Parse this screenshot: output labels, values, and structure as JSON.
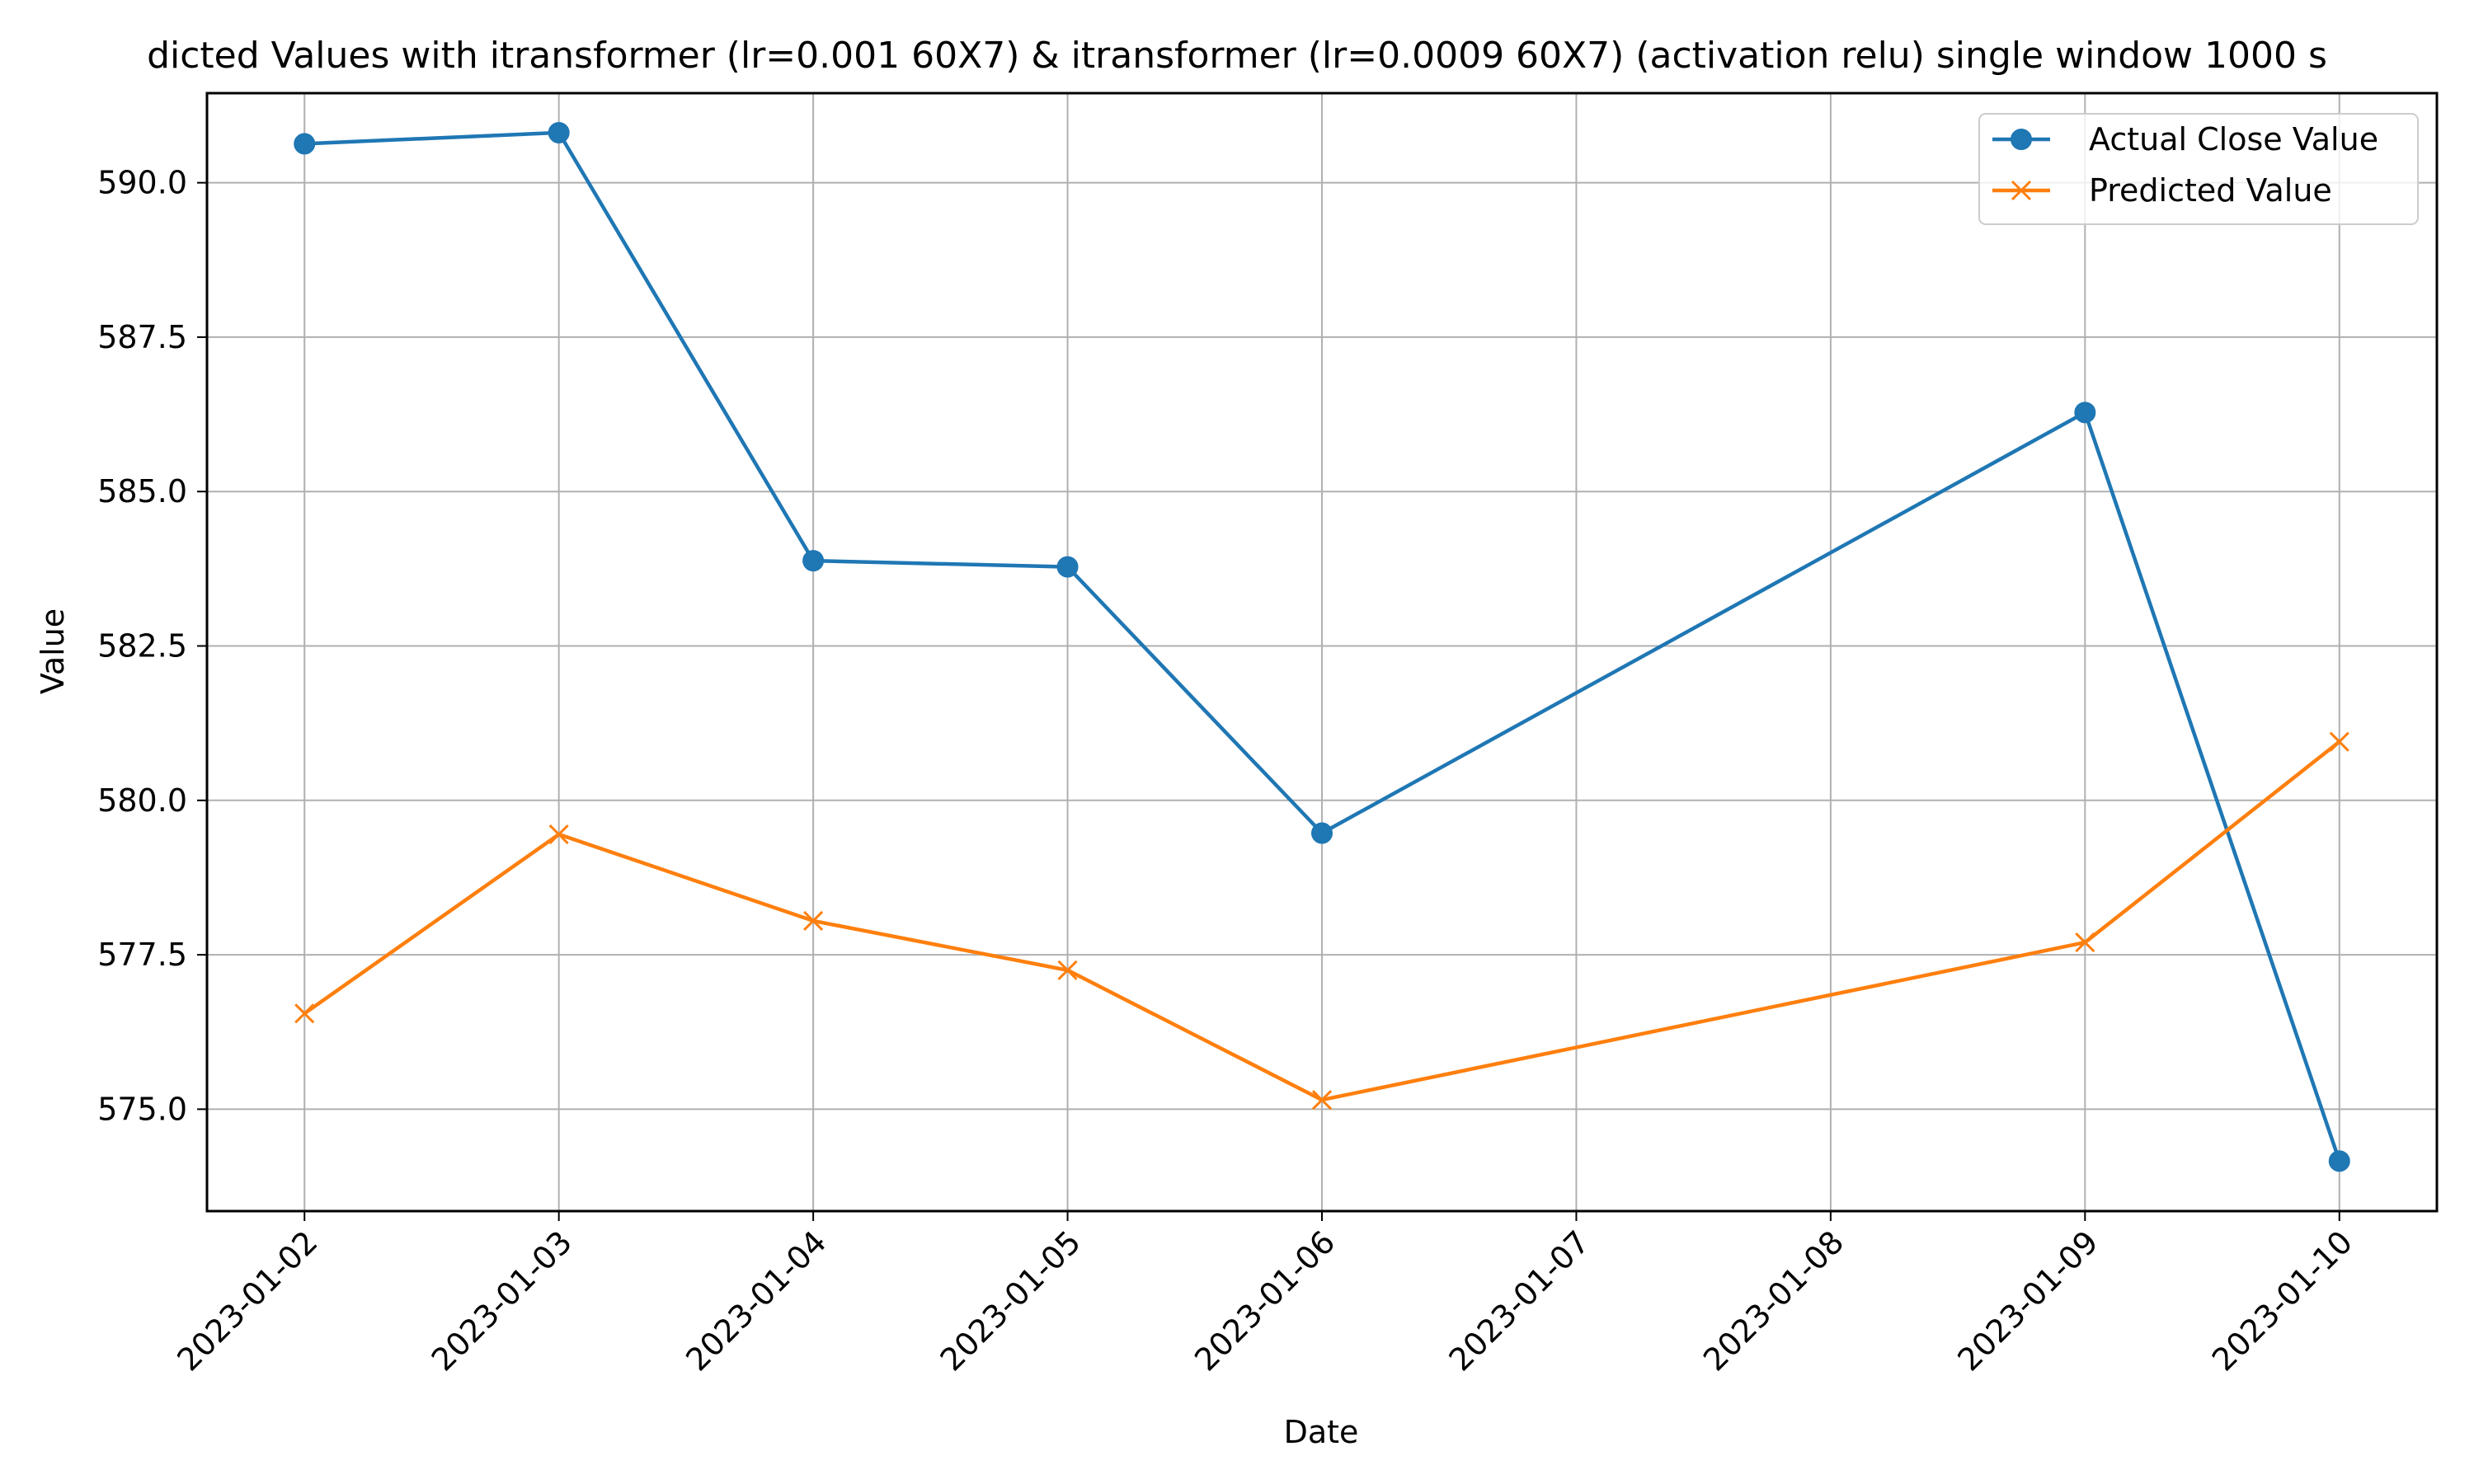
{
  "chart_data": {
    "type": "line",
    "title": "dicted Values with itransformer (lr=0.001 60X7) &  itransformer (lr=0.0009 60X7) (activation relu) single window 1000 s",
    "xlabel": "Date",
    "ylabel": "Value",
    "x": [
      "2023-01-02",
      "2023-01-03",
      "2023-01-04",
      "2023-01-05",
      "2023-01-06",
      "2023-01-09",
      "2023-01-10"
    ],
    "x_ticks": [
      "2023-01-02",
      "2023-01-03",
      "2023-01-04",
      "2023-01-05",
      "2023-01-06",
      "2023-01-07",
      "2023-01-08",
      "2023-01-09",
      "2023-01-10"
    ],
    "xlim": [
      "2023-01-01T14:48",
      "2023-01-10T09:12"
    ],
    "y_ticks": [
      575.0,
      577.5,
      580.0,
      582.5,
      585.0,
      587.5,
      590.0
    ],
    "y_tick_labels": [
      "575.0",
      "577.5",
      "580.0",
      "582.5",
      "585.0",
      "587.5",
      "590.0"
    ],
    "ylim": [
      573.35,
      591.45
    ],
    "grid": true,
    "legend_position": "top-right",
    "series": [
      {
        "name": "Actual Close Value",
        "color": "#1f77b4",
        "marker": "circle",
        "values": [
          590.63,
          590.81,
          583.88,
          583.78,
          579.47,
          586.28,
          574.16
        ]
      },
      {
        "name": "Predicted Value",
        "color": "#ff7f0e",
        "marker": "x",
        "values": [
          576.55,
          579.45,
          578.05,
          577.25,
          575.15,
          577.7,
          580.95
        ]
      }
    ]
  }
}
